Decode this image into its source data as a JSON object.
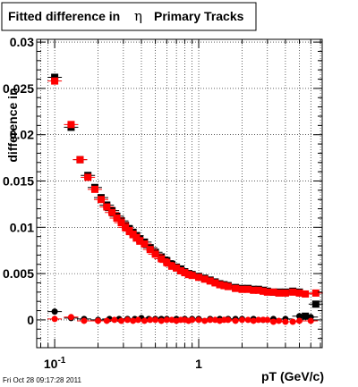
{
  "chart_data": {
    "type": "scatter",
    "title": "Fitted difference in",
    "title_symbol": "η",
    "title_suffix": "Primary Tracks",
    "xlabel": "pT (GeV/c)",
    "ylabel": "difference in",
    "x_scale": "log",
    "xlim": [
      0.075,
      7.2
    ],
    "ylim": [
      -0.003,
      0.0303
    ],
    "grid": true,
    "x_tick_labels": [
      {
        "x": 0.1,
        "base": "10",
        "exp": "-1"
      },
      {
        "x": 1,
        "base": "1",
        "exp": ""
      }
    ],
    "y_tick_labels": [
      {
        "y": 0,
        "label": "0"
      },
      {
        "y": 0.005,
        "label": "0.005"
      },
      {
        "y": 0.01,
        "label": "0.01"
      },
      {
        "y": 0.015,
        "label": "0.015"
      },
      {
        "y": 0.02,
        "label": "0.02"
      },
      {
        "y": 0.025,
        "label": "0.025"
      },
      {
        "y": 0.03,
        "label": "0.03"
      }
    ],
    "series": [
      {
        "color": "#000000",
        "marker": "square",
        "x": [
          0.1,
          0.13,
          0.15,
          0.17,
          0.19,
          0.21,
          0.23,
          0.25,
          0.27,
          0.29,
          0.31,
          0.33,
          0.35,
          0.37,
          0.39,
          0.42,
          0.46,
          0.5,
          0.55,
          0.6,
          0.65,
          0.7,
          0.75,
          0.8,
          0.85,
          0.9,
          1.0,
          1.1,
          1.2,
          1.3,
          1.4,
          1.5,
          1.6,
          1.8,
          2.0,
          2.2,
          2.4,
          2.6,
          2.8,
          3.0,
          3.3,
          3.6,
          4.0,
          4.5,
          5.0,
          5.5,
          6.5
        ],
        "y": [
          0.0262,
          0.0208,
          0.0173,
          0.0156,
          0.0143,
          0.0132,
          0.0124,
          0.0118,
          0.0112,
          0.0107,
          0.0102,
          0.0098,
          0.0094,
          0.0091,
          0.0087,
          0.0084,
          0.0078,
          0.0073,
          0.0068,
          0.0064,
          0.006,
          0.0057,
          0.0055,
          0.0052,
          0.005,
          0.0049,
          0.0047,
          0.0045,
          0.0043,
          0.0041,
          0.0039,
          0.0038,
          0.0037,
          0.0035,
          0.0034,
          0.0034,
          0.0033,
          0.0033,
          0.0032,
          0.0031,
          0.003,
          0.003,
          0.003,
          0.0031,
          0.003,
          0.0004,
          0.0017
        ]
      },
      {
        "color": "#ff0000",
        "marker": "square",
        "x": [
          0.1,
          0.13,
          0.15,
          0.17,
          0.19,
          0.21,
          0.23,
          0.25,
          0.27,
          0.29,
          0.31,
          0.33,
          0.35,
          0.37,
          0.39,
          0.42,
          0.46,
          0.5,
          0.55,
          0.6,
          0.65,
          0.7,
          0.75,
          0.8,
          0.85,
          0.9,
          1.0,
          1.1,
          1.2,
          1.3,
          1.4,
          1.5,
          1.6,
          1.8,
          2.0,
          2.2,
          2.4,
          2.6,
          2.8,
          3.0,
          3.3,
          3.6,
          4.0,
          4.5,
          5.0,
          5.5,
          6.5
        ],
        "y": [
          0.0258,
          0.0211,
          0.0173,
          0.0154,
          0.0141,
          0.013,
          0.0122,
          0.0116,
          0.011,
          0.0105,
          0.01,
          0.0096,
          0.0092,
          0.0089,
          0.0085,
          0.0082,
          0.0076,
          0.0071,
          0.0066,
          0.0062,
          0.0058,
          0.0056,
          0.0053,
          0.0051,
          0.0049,
          0.0048,
          0.0046,
          0.0044,
          0.0042,
          0.004,
          0.0038,
          0.0037,
          0.0036,
          0.0034,
          0.0033,
          0.0033,
          0.0032,
          0.0032,
          0.0031,
          0.003,
          0.003,
          0.0029,
          0.0029,
          0.003,
          0.0029,
          0.0028,
          0.0029
        ]
      },
      {
        "color": "#000000",
        "marker": "circle",
        "x": [
          0.1,
          0.13,
          0.16,
          0.2,
          0.24,
          0.28,
          0.32,
          0.36,
          0.4,
          0.45,
          0.5,
          0.55,
          0.6,
          0.7,
          0.8,
          0.9,
          1.0,
          1.2,
          1.4,
          1.6,
          1.8,
          2.0,
          2.4,
          2.8,
          3.3,
          4.0,
          5.0,
          6.0
        ],
        "y": [
          0.0009,
          0.0002,
          0.0001,
          0.0,
          0.0001,
          0.0001,
          0.0001,
          0.0001,
          0.0002,
          0.0001,
          0.0001,
          0.0001,
          0.0001,
          0.0001,
          0.0001,
          0.0001,
          0.0001,
          0.0001,
          0.0001,
          0.0001,
          0.0001,
          0.0001,
          0.0001,
          0.0,
          0.0001,
          0.0001,
          0.0004,
          0.0003
        ]
      },
      {
        "color": "#ff0000",
        "marker": "circle",
        "x": [
          0.1,
          0.13,
          0.16,
          0.2,
          0.23,
          0.26,
          0.29,
          0.32,
          0.35,
          0.38,
          0.42,
          0.46,
          0.5,
          0.55,
          0.6,
          0.65,
          0.7,
          0.75,
          0.8,
          0.85,
          0.9,
          1.0,
          1.1,
          1.2,
          1.3,
          1.4,
          1.5,
          1.6,
          1.8,
          2.0,
          2.2,
          2.4,
          2.6,
          2.8,
          3.0,
          3.3,
          3.6,
          4.0,
          4.5,
          5.0,
          6.0
        ],
        "y": [
          0.0001,
          0.0003,
          -0.0001,
          -0.0001,
          -0.0001,
          0.0,
          -0.0001,
          0.0,
          -0.0001,
          0.0,
          -0.0001,
          0.0,
          0.0,
          -0.0001,
          0.0,
          0.0,
          -0.0001,
          0.0,
          0.0,
          -0.0001,
          0.0,
          0.0,
          -0.0001,
          0.0,
          0.0,
          -0.0001,
          0.0,
          0.0,
          -0.0001,
          0.0,
          0.0,
          -0.0001,
          0.0,
          0.0,
          0.0,
          -0.0002,
          -0.0001,
          -0.0002,
          -0.0002,
          -0.0001,
          -0.0001
        ]
      }
    ]
  },
  "footer": {
    "timestamp": "Fri Oct 28 09:17:28 2011"
  }
}
